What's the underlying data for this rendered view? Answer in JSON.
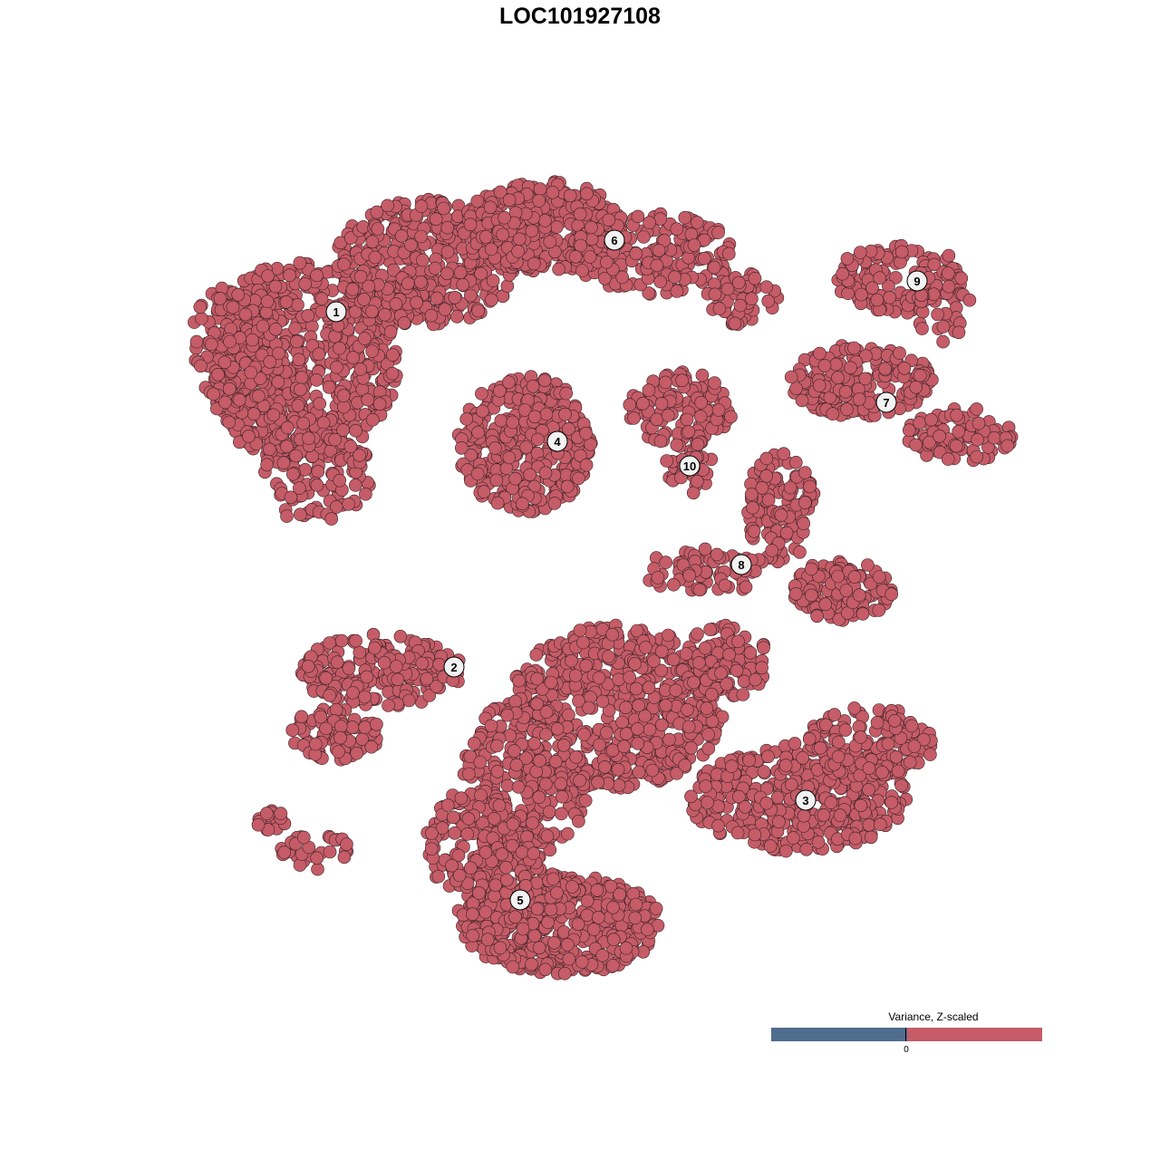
{
  "chart_data": {
    "type": "scatter",
    "title": "LOC101927108",
    "xlabel": "",
    "ylabel": "",
    "grid": false,
    "axes_visible": false,
    "point_color": "#C55C67",
    "point_edge_color": "#3a2226",
    "cluster_labels": [
      "1",
      "2",
      "3",
      "4",
      "5",
      "6",
      "7",
      "8",
      "9",
      "10"
    ],
    "colorbar": {
      "title": "Variance, Z-scaled",
      "tick_labels": [
        "0"
      ],
      "low_color": "#4F6D8F",
      "high_color": "#C55C67",
      "placement": "bottom-right"
    }
  }
}
